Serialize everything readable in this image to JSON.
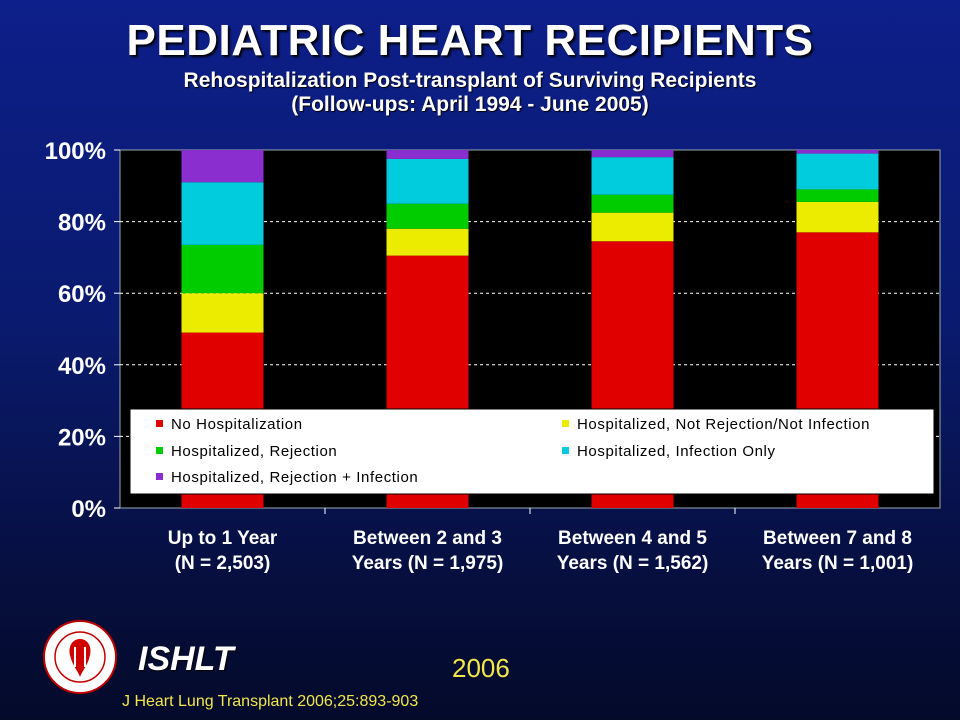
{
  "title": "PEDIATRIC HEART RECIPIENTS",
  "subtitle_line1": "Rehospitalization Post-transplant of Surviving Recipients",
  "subtitle_line2": "(Follow-ups: April 1994 - June 2005)",
  "org_label": "ISHLT",
  "year": "2006",
  "citation": "J Heart Lung Transplant 2006;25:893-903",
  "seal_icon": "ishlt-seal-icon",
  "colors": {
    "plot_bg": "#000000",
    "grid": "#ffffff",
    "No Hospitalization": "#e00000",
    "Hospitalized, Not Rejection/Not Infection": "#ecec00",
    "Hospitalized, Rejection": "#00cc00",
    "Hospitalized, Infection Only": "#00ccdd",
    "Hospitalized, Rejection + Infection": "#8a2ed0"
  },
  "chart_data": {
    "type": "bar",
    "stacked": true,
    "percent": true,
    "categories": [
      [
        "Up to 1 Year",
        "(N = 2,503)"
      ],
      [
        "Between 2 and 3",
        "Years (N = 1,975)"
      ],
      [
        "Between 4 and 5",
        "Years (N = 1,562)"
      ],
      [
        "Between 7 and 8",
        "Years (N = 1,001)"
      ]
    ],
    "series": [
      {
        "name": "No Hospitalization",
        "values": [
          49,
          70.5,
          74.5,
          77
        ]
      },
      {
        "name": "Hospitalized, Not Rejection/Not Infection",
        "values": [
          11,
          7.5,
          8,
          8.5
        ]
      },
      {
        "name": "Hospitalized, Rejection",
        "values": [
          13.5,
          7,
          5,
          3.5
        ]
      },
      {
        "name": "Hospitalized, Infection Only",
        "values": [
          17.5,
          12.5,
          10.5,
          10
        ]
      },
      {
        "name": "Hospitalized, Rejection + Infection",
        "values": [
          9,
          2.5,
          2,
          1
        ]
      }
    ],
    "ylim": [
      0,
      100
    ],
    "yticks": [
      "0%",
      "20%",
      "40%",
      "60%",
      "80%",
      "100%"
    ],
    "ytick_values": [
      0,
      20,
      40,
      60,
      80,
      100
    ],
    "grid": true,
    "legend": "inside-bottom"
  }
}
